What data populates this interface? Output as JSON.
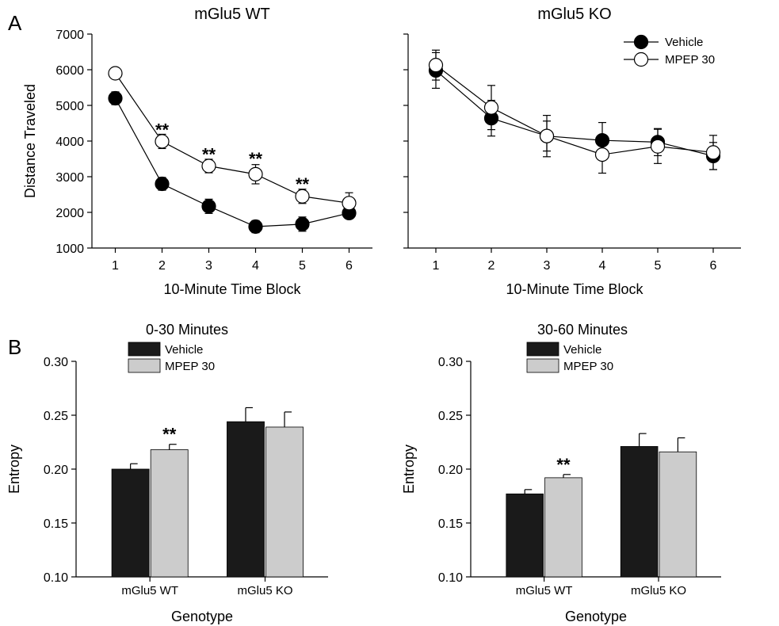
{
  "panel_labels": {
    "a": "A",
    "b": "B"
  },
  "chart_data": [
    {
      "type": "line",
      "title": "mGlu5 WT",
      "xlabel": "10-Minute Time Block",
      "ylabel": "Distance Traveled",
      "x": [
        1,
        2,
        3,
        4,
        5,
        6
      ],
      "xticks": [
        "1",
        "2",
        "3",
        "4",
        "5",
        "6"
      ],
      "xlim": [
        0.5,
        6.5
      ],
      "ylim": [
        1000,
        7000
      ],
      "yticks": [
        1000,
        2000,
        3000,
        4000,
        5000,
        6000,
        7000
      ],
      "series": [
        {
          "name": "Vehicle",
          "marker": "filled",
          "values": [
            5200,
            2800,
            2170,
            1600,
            1670,
            1980
          ],
          "errors": [
            180,
            180,
            200,
            170,
            200,
            130
          ]
        },
        {
          "name": "MPEP 30",
          "marker": "open",
          "values": [
            5900,
            3990,
            3300,
            3070,
            2450,
            2260
          ],
          "errors": [
            130,
            200,
            190,
            270,
            200,
            290
          ]
        }
      ],
      "annotations": [
        {
          "x": 2,
          "y": 4370,
          "text": "**"
        },
        {
          "x": 3,
          "y": 3680,
          "text": "**"
        },
        {
          "x": 4,
          "y": 3560,
          "text": "**"
        },
        {
          "x": 5,
          "y": 2840,
          "text": "**"
        }
      ],
      "show_legend": false
    },
    {
      "type": "line",
      "title": "mGlu5 KO",
      "xlabel": "10-Minute Time Block",
      "ylabel": "",
      "x": [
        1,
        2,
        3,
        4,
        5,
        6
      ],
      "xticks": [
        "1",
        "2",
        "3",
        "4",
        "5",
        "6"
      ],
      "xlim": [
        0.5,
        6.5
      ],
      "ylim": [
        1000,
        7000
      ],
      "yticks": [
        1000,
        2000,
        3000,
        4000,
        5000,
        6000,
        7000
      ],
      "show_ytick_labels": false,
      "series": [
        {
          "name": "Vehicle",
          "marker": "filled",
          "values": [
            5980,
            4640,
            4140,
            4020,
            3970,
            3580
          ],
          "errors": [
            500,
            500,
            420,
            500,
            380,
            380
          ]
        },
        {
          "name": "MPEP 30",
          "marker": "open",
          "values": [
            6130,
            4940,
            4140,
            3620,
            3850,
            3680
          ],
          "errors": [
            420,
            620,
            580,
            520,
            480,
            480
          ]
        }
      ],
      "annotations": [],
      "show_legend": true,
      "legend_position": "top-right"
    },
    {
      "type": "bar",
      "title": "0-30 Minutes",
      "xlabel": "Genotype",
      "ylabel": "Entropy",
      "categories": [
        "mGlu5 WT",
        "mGlu5 KO"
      ],
      "ylim": [
        0.1,
        0.3
      ],
      "yticks": [
        "0.10",
        "0.15",
        "0.20",
        "0.25",
        "0.30"
      ],
      "series": [
        {
          "name": "Vehicle",
          "color": "#1a1a1a",
          "values": [
            0.2,
            0.244
          ],
          "errors": [
            0.005,
            0.013
          ]
        },
        {
          "name": "MPEP 30",
          "color": "#cccccc",
          "values": [
            0.218,
            0.239
          ],
          "errors": [
            0.005,
            0.014
          ]
        }
      ],
      "annotations": [
        {
          "category": 0,
          "series": 1,
          "text": "**"
        }
      ],
      "legend_position": "top-left"
    },
    {
      "type": "bar",
      "title": "30-60 Minutes",
      "xlabel": "Genotype",
      "ylabel": "Entropy",
      "categories": [
        "mGlu5 WT",
        "mGlu5 KO"
      ],
      "ylim": [
        0.1,
        0.3
      ],
      "yticks": [
        "0.10",
        "0.15",
        "0.20",
        "0.25",
        "0.30"
      ],
      "series": [
        {
          "name": "Vehicle",
          "color": "#1a1a1a",
          "values": [
            0.177,
            0.221
          ],
          "errors": [
            0.004,
            0.012
          ]
        },
        {
          "name": "MPEP 30",
          "color": "#cccccc",
          "values": [
            0.192,
            0.216
          ],
          "errors": [
            0.003,
            0.013
          ]
        }
      ],
      "annotations": [
        {
          "category": 0,
          "series": 1,
          "text": "**"
        }
      ],
      "legend_position": "top-left"
    }
  ]
}
